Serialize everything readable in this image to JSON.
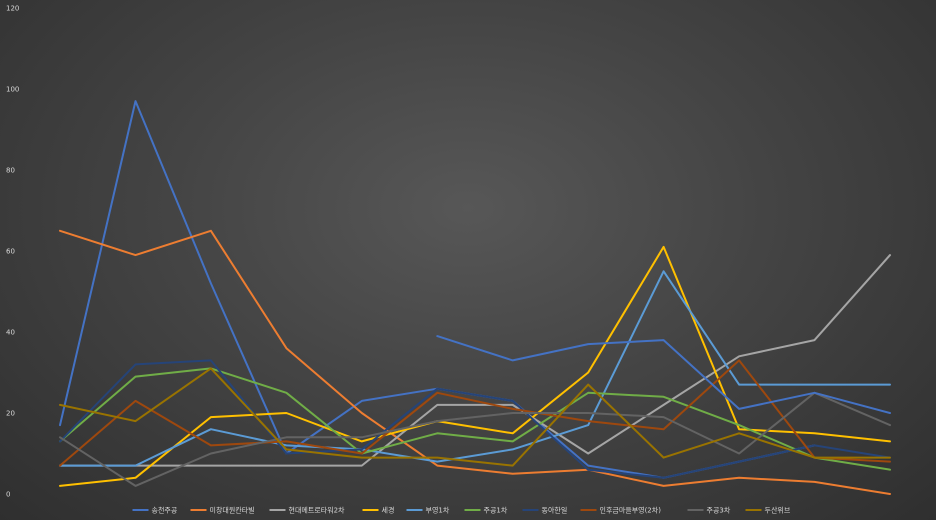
{
  "chart_data": {
    "type": "line",
    "title": "",
    "xlabel": "",
    "ylabel": "",
    "ylim": [
      0,
      120
    ],
    "yticks": [
      0,
      20,
      40,
      60,
      80,
      100,
      120
    ],
    "x_count": 13,
    "grid": false,
    "legend_position": "bottom",
    "series": [
      {
        "name": "송천주공",
        "color": "#4472c4",
        "values": [
          17,
          97,
          52,
          10,
          23,
          26,
          23,
          7,
          4,
          8,
          12,
          null,
          null
        ]
      },
      {
        "name": "미창대원칸타빌",
        "color": "#ed7d31",
        "values": [
          65,
          59,
          65,
          36,
          20,
          7,
          5,
          6,
          2,
          4,
          3,
          0,
          null
        ]
      },
      {
        "name": "현대메트로타워2차",
        "color": "#a5a5a5",
        "values": [
          7,
          7,
          7,
          7,
          7,
          22,
          22,
          10,
          22,
          34,
          38,
          59,
          null
        ]
      },
      {
        "name": "세경",
        "color": "#ffc000",
        "values": [
          2,
          4,
          19,
          20,
          13,
          18,
          15,
          30,
          61,
          16,
          15,
          13,
          null
        ]
      },
      {
        "name": "부영1차",
        "color": "#5b9bd5",
        "values": [
          7,
          7,
          16,
          12,
          11,
          8,
          11,
          17,
          55,
          27,
          27,
          27,
          null
        ]
      },
      {
        "name": "주공1차",
        "color": "#70ad47",
        "values": [
          13,
          29,
          31,
          25,
          10,
          15,
          13,
          25,
          24,
          17,
          9,
          6,
          null
        ]
      },
      {
        "name": "동아한일",
        "color": "#264478",
        "values": [
          13,
          32,
          33,
          10,
          11,
          26,
          23,
          6,
          4,
          8,
          12,
          9,
          null
        ]
      },
      {
        "name": "인후금마을부영(2차)",
        "color": "#9e480e",
        "values": [
          7,
          23,
          12,
          13,
          10,
          25,
          21,
          18,
          16,
          33,
          9,
          8,
          null
        ]
      },
      {
        "name": "주공3차",
        "color": "#636363",
        "values": [
          14,
          2,
          10,
          14,
          14,
          18,
          20,
          20,
          19,
          10,
          25,
          17,
          null
        ]
      },
      {
        "name": "두산위브",
        "color": "#997300",
        "values": [
          22,
          18,
          31,
          11,
          9,
          9,
          7,
          27,
          9,
          15,
          9,
          9,
          null
        ]
      },
      {
        "name": "",
        "color": "#4472c4",
        "values": [
          null,
          null,
          null,
          null,
          null,
          39,
          33,
          37,
          38,
          21,
          25,
          20,
          null
        ]
      }
    ]
  }
}
